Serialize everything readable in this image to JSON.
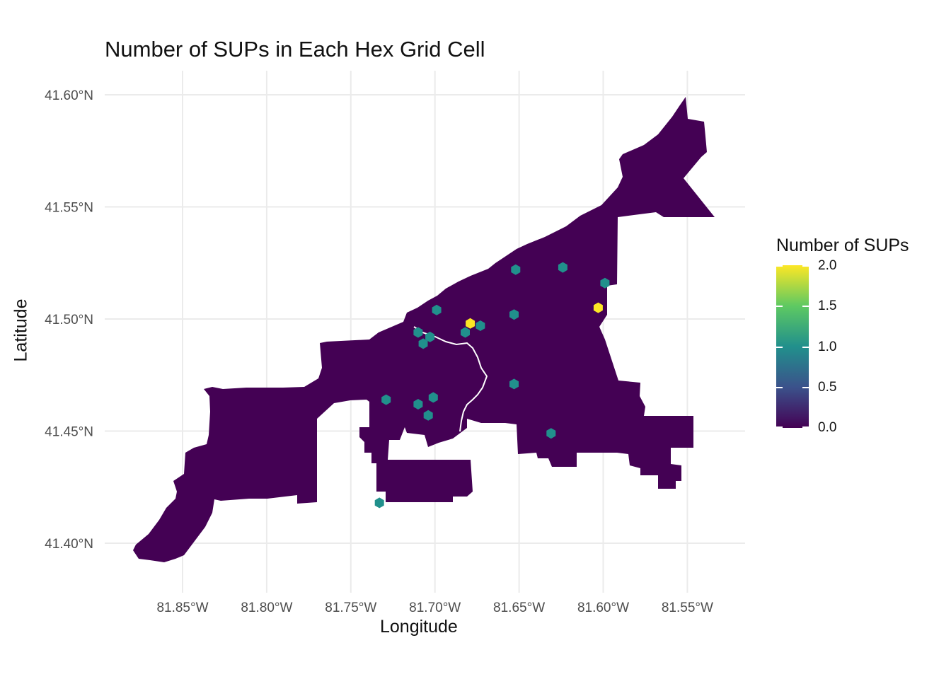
{
  "map": {
    "title": "Number of SUPs in Each Hex Grid Cell",
    "xlabel": "Longitude",
    "ylabel": "Latitude",
    "x_ticks": [
      "81.85°W",
      "81.80°W",
      "81.75°W",
      "81.70°W",
      "81.65°W",
      "81.60°W",
      "81.55°W"
    ],
    "y_ticks": [
      "41.60°N",
      "41.55°N",
      "41.50°N",
      "41.45°N",
      "41.40°N"
    ],
    "lon_ticks": [
      -81.85,
      -81.8,
      -81.75,
      -81.7,
      -81.65,
      -81.6,
      -81.55
    ],
    "lat_ticks": [
      41.6,
      41.55,
      41.5,
      41.45,
      41.4
    ],
    "grid": true,
    "fill_color": "#440154",
    "legend": {
      "title": "Number of SUPs",
      "ticks": [
        "2.0",
        "1.5",
        "1.0",
        "0.5",
        "0.0"
      ],
      "range": [
        0,
        2
      ],
      "colors": [
        "#440154",
        "#3b528b",
        "#21908c",
        "#5ec962",
        "#fde725"
      ],
      "position": "right"
    }
  },
  "chart_data": {
    "type": "heatmap",
    "title": "Number of SUPs in Each Hex Grid Cell",
    "xlabel": "Longitude",
    "ylabel": "Latitude",
    "color_scale": "viridis",
    "value_range": [
      0,
      2
    ],
    "cells": [
      {
        "lon": -81.652,
        "lat": 41.522,
        "value": 1
      },
      {
        "lon": -81.624,
        "lat": 41.523,
        "value": 1
      },
      {
        "lon": -81.599,
        "lat": 41.516,
        "value": 1
      },
      {
        "lon": -81.603,
        "lat": 41.505,
        "value": 2
      },
      {
        "lon": -81.699,
        "lat": 41.504,
        "value": 1
      },
      {
        "lon": -81.653,
        "lat": 41.502,
        "value": 1
      },
      {
        "lon": -81.679,
        "lat": 41.498,
        "value": 2
      },
      {
        "lon": -81.673,
        "lat": 41.497,
        "value": 1
      },
      {
        "lon": -81.682,
        "lat": 41.494,
        "value": 1
      },
      {
        "lon": -81.71,
        "lat": 41.494,
        "value": 1
      },
      {
        "lon": -81.703,
        "lat": 41.492,
        "value": 1
      },
      {
        "lon": -81.707,
        "lat": 41.489,
        "value": 1
      },
      {
        "lon": -81.653,
        "lat": 41.471,
        "value": 1
      },
      {
        "lon": -81.729,
        "lat": 41.464,
        "value": 1
      },
      {
        "lon": -81.701,
        "lat": 41.465,
        "value": 1
      },
      {
        "lon": -81.71,
        "lat": 41.462,
        "value": 1
      },
      {
        "lon": -81.704,
        "lat": 41.457,
        "value": 1
      },
      {
        "lon": -81.631,
        "lat": 41.449,
        "value": 1
      },
      {
        "lon": -81.733,
        "lat": 41.418,
        "value": 1
      }
    ]
  }
}
